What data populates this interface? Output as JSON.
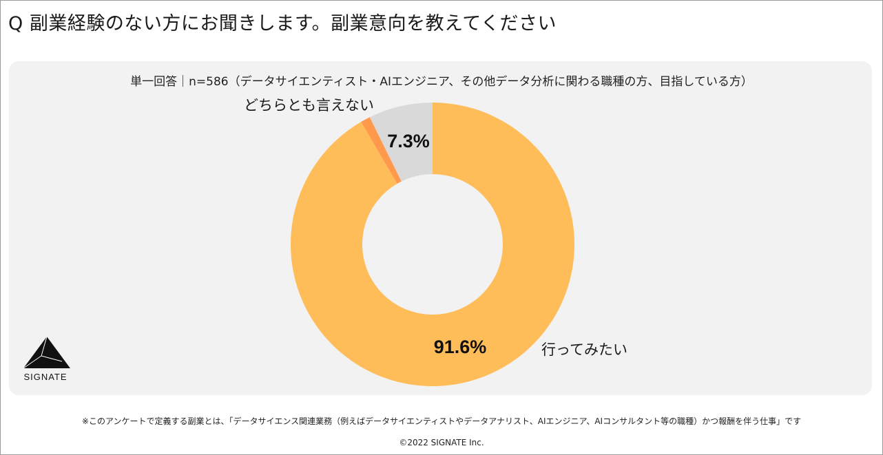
{
  "question": "Q 副業経験のない方にお聞きします。副業意向を教えてください",
  "chart_data": {
    "type": "pie",
    "subtitle": "単一回答｜n=586（データサイエンティスト・AIエンジニア、その他データ分析に関わる職種の方、目指している方）",
    "slices": [
      {
        "label": "行ってみたい",
        "value": 91.6,
        "display": "91.6%",
        "color": "#ffbd59"
      },
      {
        "label": "",
        "value": 1.1,
        "display": "",
        "color": "#ff9a4d"
      },
      {
        "label": "どちらとも言えない",
        "value": 7.3,
        "display": "7.3%",
        "color": "#d9d9d9"
      }
    ],
    "donut": true,
    "legend": "none"
  },
  "logo": {
    "text": "SIGNATE"
  },
  "footer": {
    "note": "※このアンケートで定義する副業とは、「データサイエンス関連業務（例えばデータサイエンティストやデータアナリスト、AIエンジニア、AIコンサルタント等の職種）かつ報酬を伴う仕事」です",
    "copyright": "©2022 SIGNATE Inc."
  }
}
